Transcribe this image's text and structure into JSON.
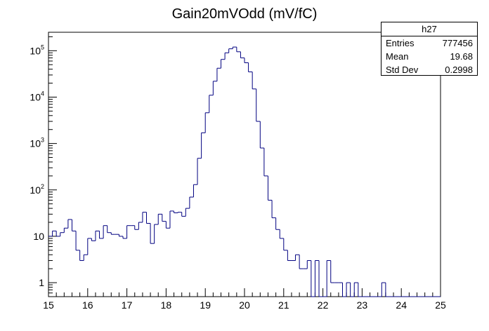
{
  "chart_data": {
    "type": "histogram",
    "title": "Gain20mVOdd (mV/fC)",
    "xlabel": "",
    "ylabel": "",
    "xlim": [
      15,
      25
    ],
    "ylim": [
      0.5,
      250000
    ],
    "y_scale": "log",
    "line_color": "#000080",
    "x_ticks": [
      15,
      16,
      17,
      18,
      19,
      20,
      21,
      22,
      23,
      24,
      25
    ],
    "y_ticks": [
      {
        "value": 1,
        "base": "1",
        "exp": ""
      },
      {
        "value": 10,
        "base": "10",
        "exp": ""
      },
      {
        "value": 100,
        "base": "10",
        "exp": "2"
      },
      {
        "value": 1000,
        "base": "10",
        "exp": "3"
      },
      {
        "value": 10000,
        "base": "10",
        "exp": "4"
      },
      {
        "value": 100000,
        "base": "10",
        "exp": "5"
      }
    ],
    "bin_width": 0.1,
    "bin_edges_start": 15,
    "counts": [
      10,
      13,
      10,
      12,
      15,
      23,
      13,
      5,
      3,
      4,
      9,
      8,
      13,
      9,
      17,
      12,
      11,
      11,
      10,
      9,
      17,
      17,
      14,
      20,
      33,
      19,
      7,
      18,
      30,
      21,
      15,
      35,
      32,
      33,
      27,
      40,
      70,
      130,
      480,
      1700,
      4600,
      11000,
      22000,
      42000,
      65000,
      90000,
      110000,
      120000,
      95000,
      70000,
      55000,
      35000,
      15000,
      3000,
      800,
      200,
      60,
      25,
      14,
      9,
      5,
      3,
      3,
      4,
      2,
      2,
      3,
      0,
      3,
      0,
      0,
      3,
      1,
      1,
      1,
      0,
      1,
      0,
      1,
      0,
      0,
      0,
      0,
      0,
      0,
      1,
      0,
      0,
      0,
      0,
      0,
      0,
      0,
      0,
      0,
      0,
      0,
      0,
      0,
      0
    ]
  },
  "stats_box": {
    "name": "h27",
    "entries_label": "Entries",
    "entries_value": "777456",
    "mean_label": "Mean",
    "mean_value": "19.68",
    "stddev_label": "Std Dev",
    "stddev_value": "0.2998"
  }
}
